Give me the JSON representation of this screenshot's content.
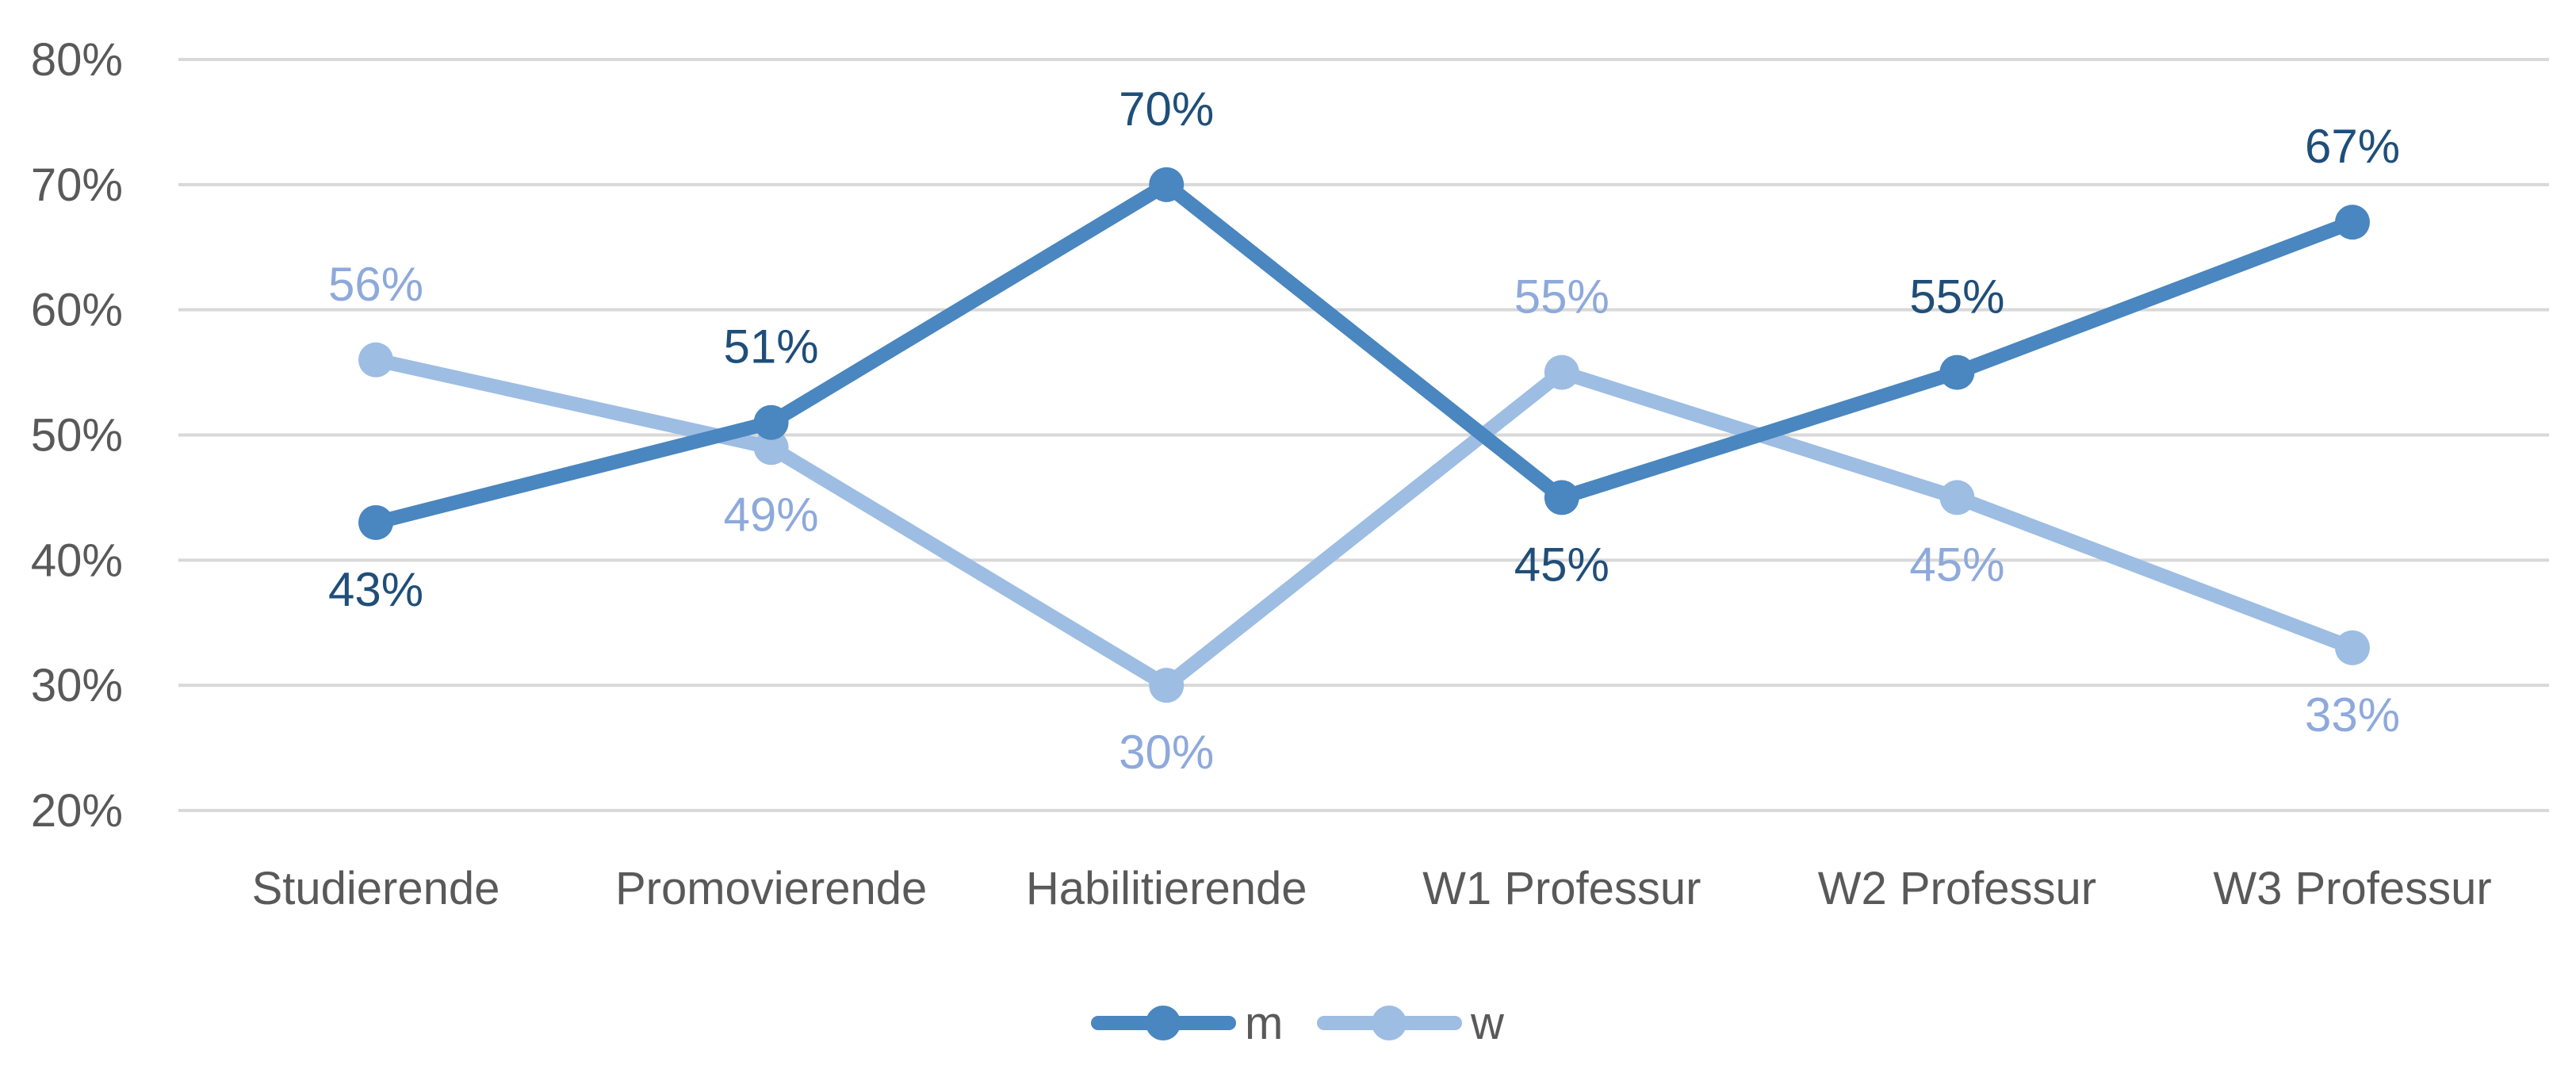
{
  "chart_data": {
    "type": "line",
    "categories": [
      "Studierende",
      "Promovierende",
      "Habilitierende",
      "W1 Professur",
      "W2 Professur",
      "W3 Professur"
    ],
    "series": [
      {
        "name": "m",
        "values": [
          43,
          51,
          70,
          45,
          55,
          67
        ],
        "labels": [
          "43%",
          "51%",
          "70%",
          "45%",
          "55%",
          "67%"
        ],
        "color": "#4a86bf",
        "label_color": "#1f4e79"
      },
      {
        "name": "w",
        "values": [
          56,
          49,
          30,
          55,
          45,
          33
        ],
        "labels": [
          "56%",
          "49%",
          "30%",
          "55%",
          "45%",
          "33%"
        ],
        "color": "#9dbde3",
        "label_color": "#8ea9db"
      }
    ],
    "y_ticks": [
      "20%",
      "30%",
      "40%",
      "50%",
      "60%",
      "70%",
      "80%"
    ],
    "ylim": [
      20,
      80
    ],
    "grid": true,
    "legend_placement": "bottom-center",
    "title": "",
    "xlabel": "",
    "ylabel": ""
  }
}
